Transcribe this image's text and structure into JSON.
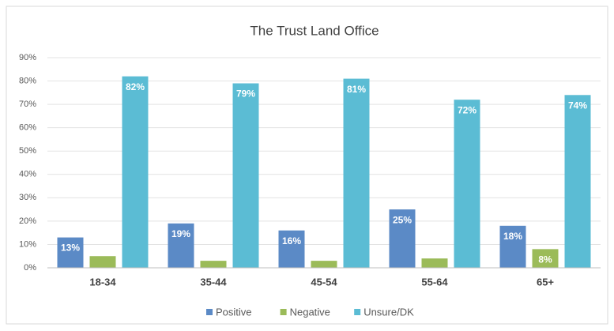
{
  "chart_data": {
    "type": "bar",
    "title": "The Trust Land Office",
    "categories": [
      "18-34",
      "35-44",
      "45-54",
      "55-64",
      "65+"
    ],
    "series": [
      {
        "name": "Positive",
        "color": "#5b8ac6",
        "values": [
          13,
          19,
          16,
          25,
          18
        ],
        "value_labels": [
          "13%",
          "19%",
          "16%",
          "25%",
          "18%"
        ]
      },
      {
        "name": "Negative",
        "color": "#9bbb59",
        "values": [
          5,
          3,
          3,
          4,
          8
        ],
        "value_labels": [
          null,
          null,
          null,
          null,
          "8%"
        ]
      },
      {
        "name": "Unsure/DK",
        "color": "#5bbcd4",
        "values": [
          82,
          79,
          81,
          72,
          74
        ],
        "value_labels": [
          "82%",
          "79%",
          "81%",
          "72%",
          "74%"
        ]
      }
    ],
    "ylim": [
      0,
      90
    ],
    "yticks": [
      {
        "value": 0,
        "label": "0%"
      },
      {
        "value": 10,
        "label": "10%"
      },
      {
        "value": 20,
        "label": "20%"
      },
      {
        "value": 30,
        "label": "30%"
      },
      {
        "value": 40,
        "label": "40%"
      },
      {
        "value": 50,
        "label": "50%"
      },
      {
        "value": 60,
        "label": "60%"
      },
      {
        "value": 70,
        "label": "70%"
      },
      {
        "value": 80,
        "label": "80%"
      },
      {
        "value": 90,
        "label": "90%"
      }
    ],
    "grid": true,
    "legend": "bottom"
  }
}
